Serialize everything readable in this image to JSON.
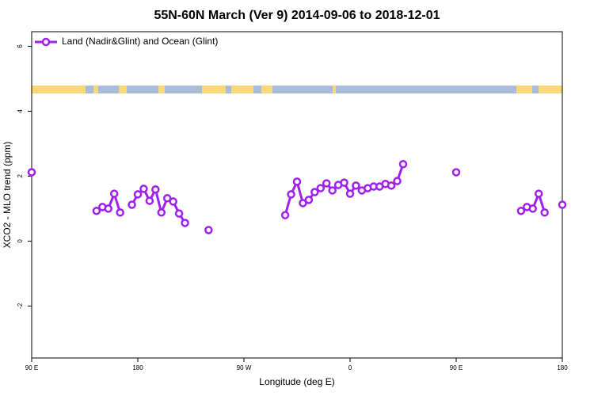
{
  "chart_data": {
    "type": "line",
    "title": "55N-60N March (Ver 9)   2014-09-06 to 2018-12-01",
    "x_label": "Longitude (deg E)",
    "y_label": "XCO2 - MLO trend (ppm)",
    "legend_position": "top-left",
    "xlim": [
      90,
      540
    ],
    "xticks": [
      {
        "value": 90,
        "label": "90 E"
      },
      180,
      {
        "value": 270,
        "label": "90 W"
      },
      {
        "value": 360,
        "label": "0"
      },
      {
        "value": 450,
        "label": "90 E"
      },
      {
        "value": 540,
        "label": "180"
      }
    ],
    "ylim": [
      -3.6,
      6.45
    ],
    "yticks": [
      -2,
      0,
      2,
      4,
      6
    ],
    "x": [
      90,
      120,
      145,
      150,
      155,
      160,
      165,
      170,
      175,
      180,
      185,
      190,
      195,
      200,
      205,
      210,
      215,
      220,
      230,
      240,
      270,
      305,
      310,
      315,
      320,
      325,
      330,
      335,
      340,
      345,
      350,
      355,
      360,
      365,
      370,
      375,
      380,
      385,
      390,
      395,
      400,
      405,
      420,
      450,
      480,
      505,
      510,
      515,
      520,
      525,
      530,
      540
    ],
    "series": [
      {
        "name": "Land (Nadir&Glint) and Ocean (Glint)",
        "color": "#a020f0",
        "values": [
          2.12,
          null,
          0.93,
          1.05,
          1.0,
          1.46,
          0.88,
          null,
          1.12,
          1.44,
          1.61,
          1.24,
          1.59,
          0.88,
          1.32,
          1.22,
          0.85,
          0.56,
          null,
          0.34,
          null,
          0.8,
          1.44,
          1.83,
          1.17,
          1.27,
          1.51,
          1.63,
          1.78,
          1.56,
          1.73,
          1.8,
          1.46,
          1.71,
          1.56,
          1.63,
          1.68,
          1.68,
          1.76,
          1.71,
          1.85,
          2.37,
          null,
          2.12,
          null,
          0.93,
          1.05,
          1.0,
          1.46,
          0.88,
          null,
          1.12
        ]
      }
    ]
  }
}
